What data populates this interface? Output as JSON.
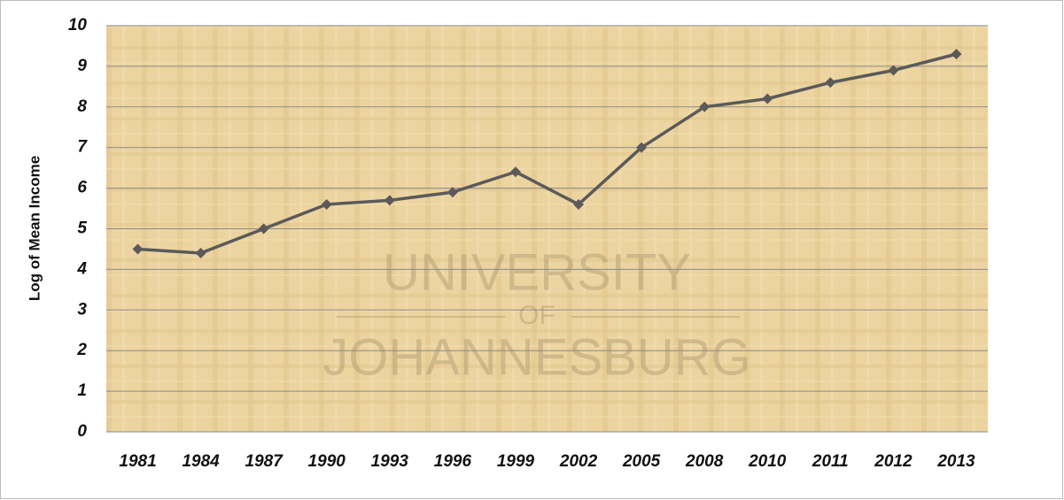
{
  "chart_data": {
    "type": "line",
    "y_label": "Log  of Mean Income",
    "categories": [
      "1981",
      "1984",
      "1987",
      "1990",
      "1993",
      "1996",
      "1999",
      "2002",
      "2005",
      "2008",
      "2010",
      "2011",
      "2012",
      "2013"
    ],
    "values": [
      4.5,
      4.4,
      5.0,
      5.6,
      5.7,
      5.9,
      6.4,
      5.6,
      7.0,
      8.0,
      8.2,
      8.6,
      8.9,
      9.3
    ],
    "color": "#5a5a5a",
    "ylim": [
      0,
      10
    ],
    "yticks": [
      0,
      1,
      2,
      3,
      4,
      5,
      6,
      7,
      8,
      9,
      10
    ],
    "grid": true,
    "annotations": [
      "UNIVERSITY",
      "OF",
      "JOHANNESBURG"
    ]
  }
}
